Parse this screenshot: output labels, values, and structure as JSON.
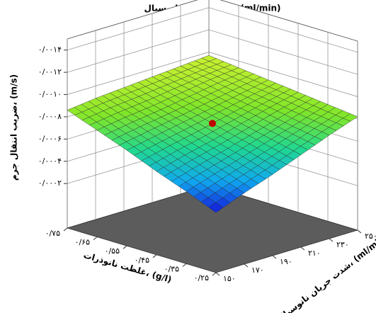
{
  "chart_data": {
    "type": "surface",
    "title": "شدت جریان نانوسیال، (ml/min)",
    "x_label": "غلظت نانوذرات، (g/l)",
    "y_label": "شدت جریان نانوسیال، (ml/min)",
    "z_label": "ضریب انتقال جرم، (m/s)",
    "x": [
      0.25,
      0.35,
      0.45,
      0.55,
      0.65,
      0.75
    ],
    "y": [
      150,
      170,
      190,
      210,
      230,
      250
    ],
    "z": [
      [
        0.00034,
        0.00044,
        0.00053,
        0.00063,
        0.00073,
        0.00082
      ],
      [
        0.00045,
        0.00053,
        0.00061,
        0.00069,
        0.00077,
        0.00085
      ],
      [
        0.00055,
        0.00062,
        0.00068,
        0.00075,
        0.00082,
        0.00088
      ],
      [
        0.00066,
        0.00071,
        0.00076,
        0.00081,
        0.00086,
        0.00091
      ],
      [
        0.00076,
        0.0008,
        0.00083,
        0.00087,
        0.00091,
        0.00094
      ],
      [
        0.00086,
        0.00089,
        0.00091,
        0.00093,
        0.00095,
        0.00097
      ]
    ],
    "xlim": [
      0.25,
      0.75
    ],
    "ylim": [
      150,
      250
    ],
    "zlim": [
      -0.0002,
      0.0015
    ],
    "xticks": [
      {
        "value": 0.25,
        "label": "۰/۲۵"
      },
      {
        "value": 0.35,
        "label": "۰/۳۵"
      },
      {
        "value": 0.45,
        "label": "۰/۴۵"
      },
      {
        "value": 0.55,
        "label": "۰/۵۵"
      },
      {
        "value": 0.65,
        "label": "۰/۶۵"
      },
      {
        "value": 0.75,
        "label": "۰/۷۵"
      }
    ],
    "yticks": [
      {
        "value": 150,
        "label": "۱۵۰"
      },
      {
        "value": 170,
        "label": "۱۷۰"
      },
      {
        "value": 190,
        "label": "۱۹۰"
      },
      {
        "value": 210,
        "label": "۲۱۰"
      },
      {
        "value": 230,
        "label": "۲۳۰"
      },
      {
        "value": 250,
        "label": "۲۵۰"
      }
    ],
    "zticks": [
      {
        "value": 0.0002,
        "label": "۰/۰۰۰۲"
      },
      {
        "value": 0.0004,
        "label": "۰/۰۰۰۴"
      },
      {
        "value": 0.0006,
        "label": "۰/۰۰۰۶"
      },
      {
        "value": 0.0008,
        "label": "۰/۰۰۰۸"
      },
      {
        "value": 0.001,
        "label": "۰/۰۰۱۰"
      },
      {
        "value": 0.0012,
        "label": "۰/۰۰۱۲"
      },
      {
        "value": 0.0014,
        "label": "۰/۰۰۱۴"
      }
    ],
    "colormap": [
      "#1414d8",
      "#10a8f0",
      "#20d890",
      "#7ee62a",
      "#c8f030"
    ],
    "floor_color": "#5c5c5c",
    "grid": true,
    "point": {
      "x": 0.5,
      "y": 200,
      "z": 0.00075,
      "color": "#c00000"
    }
  }
}
